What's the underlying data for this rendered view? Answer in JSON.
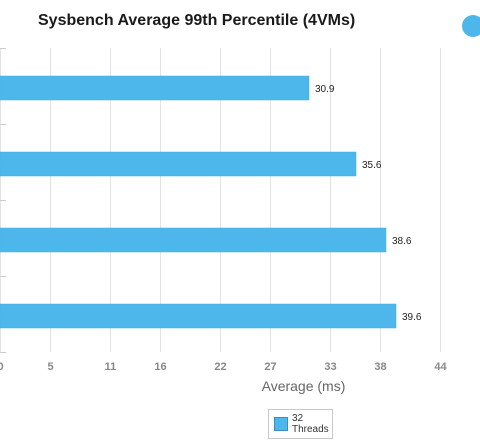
{
  "chart_data": {
    "type": "bar",
    "orientation": "horizontal",
    "title": "Sysbench Average 99th Percentile (4VMs)",
    "xlabel": "Average (ms)",
    "ylabel": "",
    "x_ticks": [
      "0",
      "5",
      "11",
      "16",
      "22",
      "27",
      "33",
      "38",
      "44"
    ],
    "xlim": [
      0,
      44.5
    ],
    "grid": true,
    "legend_position": "bottom",
    "series": [
      {
        "name": "32 Threads",
        "color": "#4db7ec",
        "values": [
          30.9,
          35.6,
          38.6,
          39.6
        ]
      }
    ],
    "data_labels": [
      "30.9",
      "35.6",
      "38.6",
      "39.6"
    ]
  }
}
